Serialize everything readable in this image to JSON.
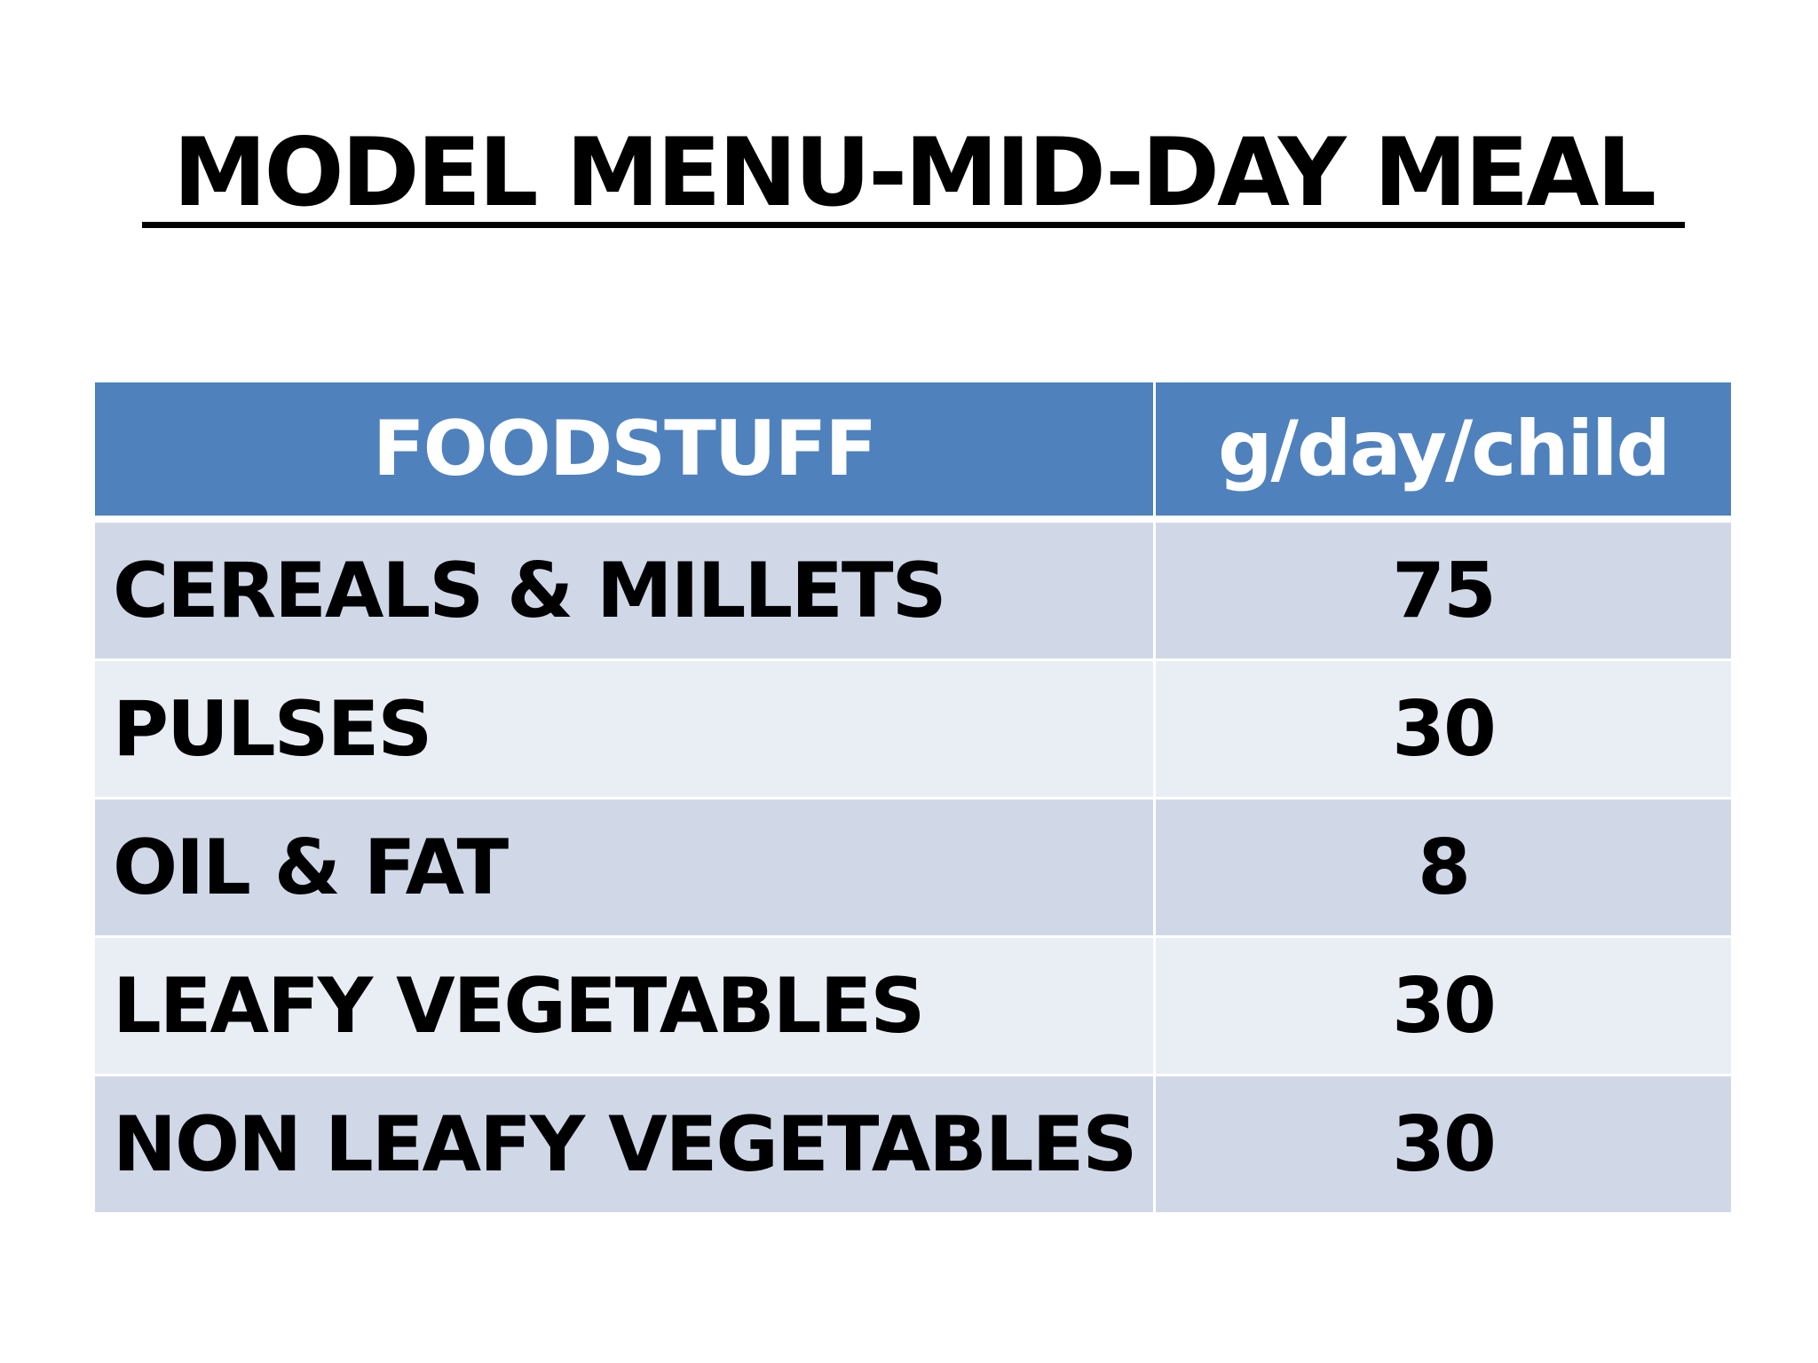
{
  "slide": {
    "title": "MODEL MENU-MID-DAY MEAL"
  },
  "table": {
    "headers": {
      "food": "FOODSTUFF",
      "quantity": "g/day/child"
    },
    "rows": [
      {
        "food": "CEREALS & MILLETS",
        "quantity": "75"
      },
      {
        "food": "PULSES",
        "quantity": "30"
      },
      {
        "food": "OIL & FAT",
        "quantity": "8"
      },
      {
        "food": "LEAFY VEGETABLES",
        "quantity": "30"
      },
      {
        "food": "NON LEAFY VEGETABLES",
        "quantity": "30"
      }
    ]
  },
  "colors": {
    "header_background": "#4f81bd",
    "row_odd": "#d0d8e8",
    "row_even": "#e9edf4"
  }
}
